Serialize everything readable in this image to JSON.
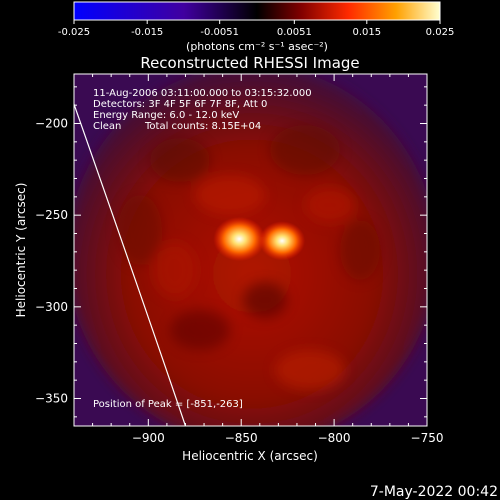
{
  "colorbar": {
    "ticks": [
      "-0.025",
      "-0.015",
      "-0.0051",
      "0.0051",
      "0.015",
      "0.025"
    ],
    "tick_values": [
      -0.025,
      -0.015,
      -0.0051,
      0.0051,
      0.015,
      0.025
    ],
    "range": [
      -0.025,
      0.025
    ],
    "unit_label": "(photons cm⁻² s⁻¹ asec⁻²)"
  },
  "chart_data": {
    "type": "heatmap",
    "title": "Reconstructed RHESSI Image",
    "xlabel": "Heliocentric X (arcsec)",
    "ylabel": "Heliocentric Y (arcsec)",
    "xlim": [
      -940,
      -750
    ],
    "ylim": [
      -365,
      -173
    ],
    "xticks": [
      -900,
      -850,
      -800,
      -750
    ],
    "yticks": [
      -200,
      -250,
      -300,
      -350
    ],
    "x_tick_labels": [
      "−900",
      "−850",
      "−800",
      "−750"
    ],
    "y_tick_labels": [
      "−200",
      "−250",
      "−300",
      "−350"
    ],
    "sources": [
      {
        "x": -851,
        "y": -263,
        "rel_intensity": 1.0
      },
      {
        "x": -828,
        "y": -264,
        "rel_intensity": 0.85
      }
    ],
    "limb_x_at_y": [
      [
        -945,
        -175
      ],
      [
        -900,
        -305
      ],
      [
        -880,
        -365
      ]
    ],
    "annotations": {
      "time_range": "11-Aug-2006 03:11:00.000 to 03:15:32.000",
      "detectors": "Detectors: 3F 4F 5F 6F 7F 8F, Att 0",
      "energy_range": "Energy Range: 6.0 - 12.0 keV",
      "method": "Clean",
      "total_counts": "Total counts: 8.15E+04",
      "peak": "Position of Peak = [-851,-263]"
    }
  },
  "footer": {
    "date": "7-May-2022 00:42"
  }
}
